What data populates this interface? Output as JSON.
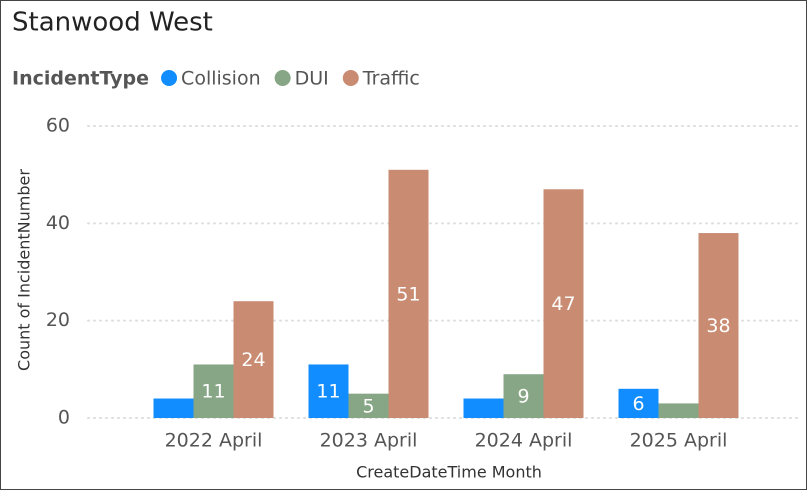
{
  "chart_data": {
    "type": "bar",
    "title": "Stanwood West",
    "legend_title": "IncidentType",
    "categories": [
      "2022 April",
      "2023 April",
      "2024 April",
      "2025 April"
    ],
    "series": [
      {
        "name": "Collision",
        "color": "#118DFF",
        "values": [
          4,
          11,
          4,
          6
        ],
        "value_labels": [
          null,
          11,
          null,
          6
        ]
      },
      {
        "name": "DUI",
        "color": "#87A685",
        "values": [
          11,
          5,
          9,
          3
        ],
        "value_labels": [
          11,
          5,
          9,
          null
        ]
      },
      {
        "name": "Traffic",
        "color": "#C98C73",
        "values": [
          24,
          51,
          47,
          38
        ],
        "value_labels": [
          24,
          51,
          47,
          38
        ]
      }
    ],
    "ylim": [
      0,
      60
    ],
    "yticks": [
      0,
      20,
      40,
      60
    ],
    "grid": true,
    "xlabel": "CreateDateTime Month",
    "ylabel": "Count of IncidentNumber",
    "legend": "top-left"
  }
}
